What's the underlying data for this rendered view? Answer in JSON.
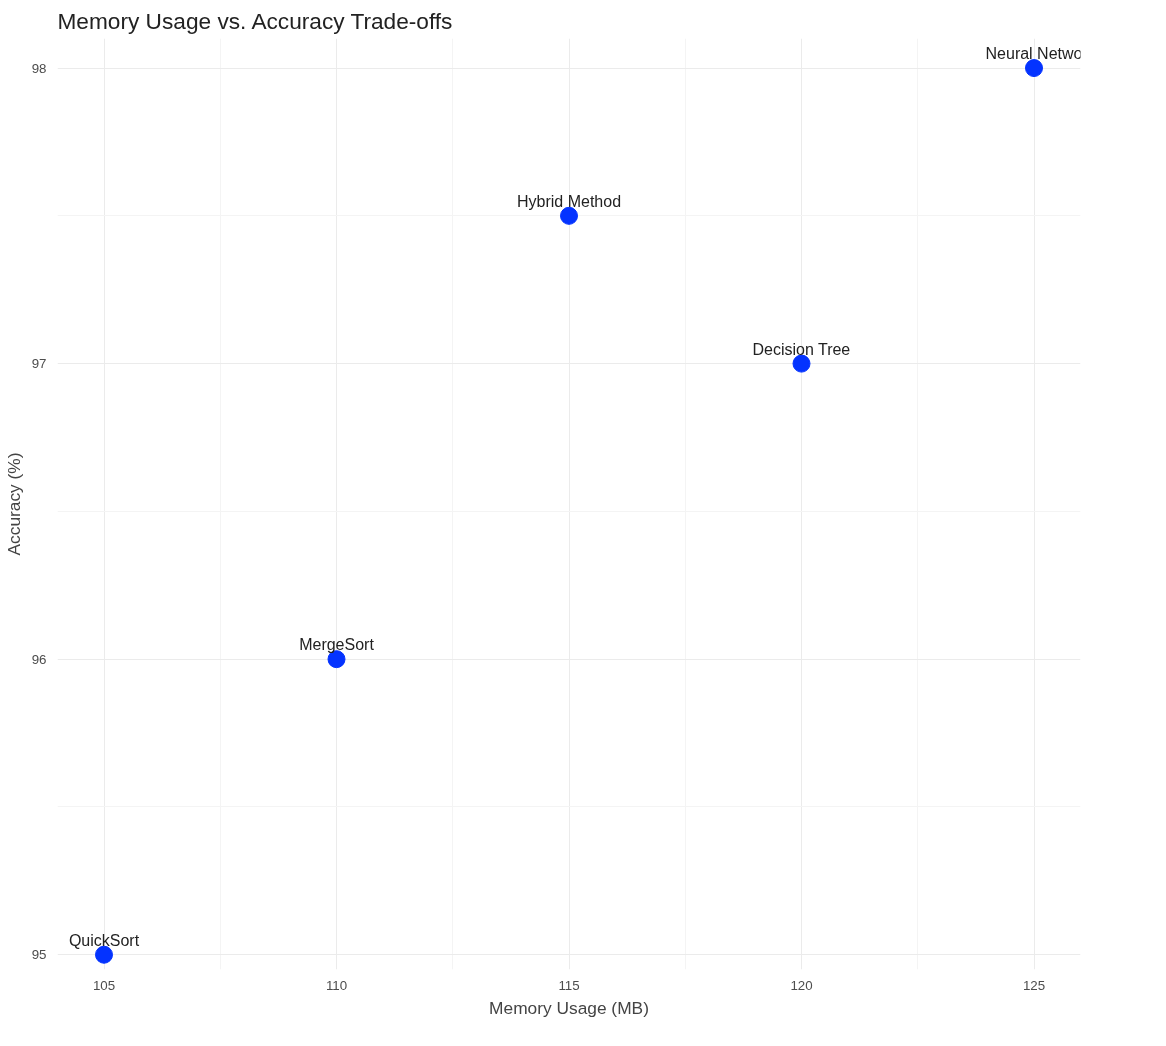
{
  "chart_data": {
    "type": "scatter",
    "title": "Memory Usage vs. Accuracy Trade-offs",
    "xlabel": "Memory Usage (MB)",
    "ylabel": "Accuracy (%)",
    "x": [
      105,
      110,
      115,
      120,
      125
    ],
    "series": [
      {
        "color": "#0433ff",
        "values": [
          95,
          96,
          97.5,
          97,
          98
        ]
      }
    ],
    "annotations": [
      {
        "text": "QuickSort",
        "x": 105,
        "y": 95
      },
      {
        "text": "MergeSort",
        "x": 110,
        "y": 96
      },
      {
        "text": "Hybrid Method",
        "x": 115,
        "y": 97.5
      },
      {
        "text": "Decision Tree",
        "x": 120,
        "y": 97
      },
      {
        "text": "Neural Netwo",
        "x": 125,
        "y": 98
      }
    ],
    "xlim": [
      104,
      126
    ],
    "ylim": [
      94.95,
      98.1
    ],
    "xticks": [
      105,
      110,
      115,
      120,
      125
    ],
    "yticks": [
      95,
      96,
      97,
      98
    ],
    "grid": true,
    "marker": "circle"
  }
}
